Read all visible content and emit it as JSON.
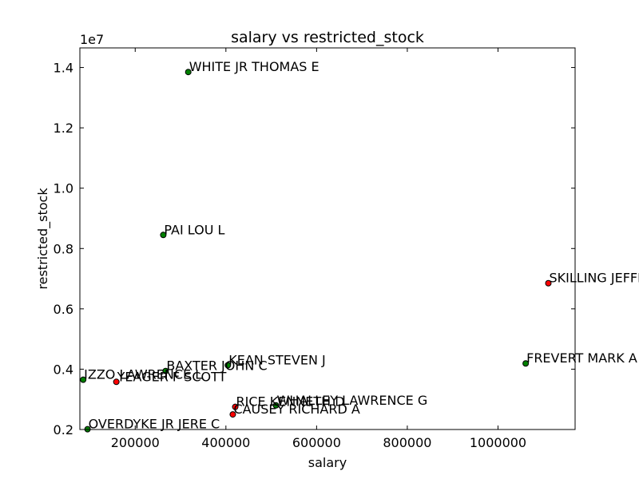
{
  "chart_data": {
    "type": "scatter",
    "title": "salary vs restricted_stock",
    "xlabel": "salary",
    "ylabel": "restricted_stock",
    "y_scale_label": "1e7",
    "xlim": [
      78000,
      1170000
    ],
    "ylim": [
      2000000,
      14650000
    ],
    "x_ticks": [
      200000,
      400000,
      600000,
      800000,
      1000000
    ],
    "x_tick_labels": [
      "200000",
      "400000",
      "600000",
      "800000",
      "1000000"
    ],
    "y_ticks": [
      2000000,
      4000000,
      6000000,
      8000000,
      10000000,
      12000000,
      14000000
    ],
    "y_tick_labels": [
      "0.2",
      "0.4",
      "0.6",
      "0.8",
      "1.0",
      "1.2",
      "1.4"
    ],
    "grid": false,
    "colors": {
      "poi": "#ff0000",
      "non_poi": "#008000"
    },
    "points": [
      {
        "name": "WHITE JR THOMAS E",
        "x": 317000,
        "y": 13850000,
        "poi": false
      },
      {
        "name": "PAI LOU L",
        "x": 261900,
        "y": 8450000,
        "poi": false
      },
      {
        "name": "SKILLING JEFFREY K",
        "x": 1111000,
        "y": 6850000,
        "poi": true
      },
      {
        "name": "FREVERT MARK A",
        "x": 1061000,
        "y": 4190000,
        "poi": false
      },
      {
        "name": "KEAN STEVEN J",
        "x": 404300,
        "y": 4130000,
        "poi": false
      },
      {
        "name": "BAXTER JOHN C",
        "x": 267100,
        "y": 3940000,
        "poi": false
      },
      {
        "name": "IZZO LAWRENCE L",
        "x": 85300,
        "y": 3650000,
        "poi": false
      },
      {
        "name": "YEAGER F SCOTT",
        "x": 158400,
        "y": 3580000,
        "poi": true
      },
      {
        "name": "WHALLEY LAWRENCE G",
        "x": 510400,
        "y": 2800000,
        "poi": false
      },
      {
        "name": "RICE KENNETH D",
        "x": 420600,
        "y": 2750000,
        "poi": true
      },
      {
        "name": "CAUSEY RICHARD A",
        "x": 415200,
        "y": 2500000,
        "poi": true
      },
      {
        "name": "OVERDYKE JR JERE C",
        "x": 94900,
        "y": 2010000,
        "poi": false
      }
    ]
  }
}
